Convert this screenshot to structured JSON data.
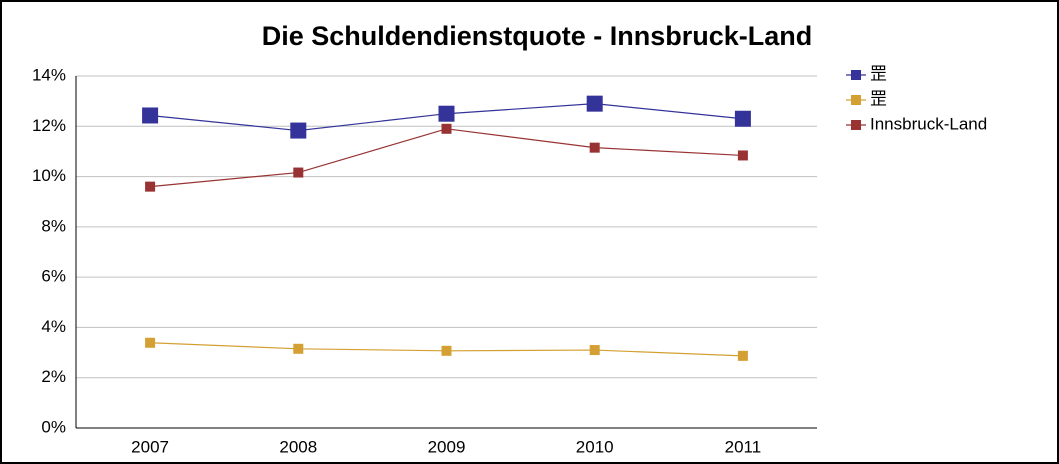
{
  "chart_data": {
    "type": "line",
    "title": "Die Schuldendienstquote - Innsbruck-Land",
    "categories": [
      "2007",
      "2008",
      "2009",
      "2010",
      "2011"
    ],
    "series": [
      {
        "name": "罡",
        "color": "#333399",
        "values": [
          12.43,
          11.83,
          12.5,
          12.9,
          12.3
        ]
      },
      {
        "name": "罡",
        "color": "#d4a033",
        "values": [
          3.39,
          3.15,
          3.07,
          3.1,
          2.87
        ]
      },
      {
        "name": "Innsbruck-Land",
        "color": "#993333",
        "values": [
          9.6,
          10.16,
          11.9,
          11.15,
          10.84
        ]
      }
    ],
    "ylim": [
      0,
      14
    ],
    "yticks": [
      {
        "value": 0,
        "label": "0%"
      },
      {
        "value": 2,
        "label": "2%"
      },
      {
        "value": 4,
        "label": "4%"
      },
      {
        "value": 6,
        "label": "6%"
      },
      {
        "value": 8,
        "label": "8%"
      },
      {
        "value": 10,
        "label": "10%"
      },
      {
        "value": 12,
        "label": "12%"
      },
      {
        "value": 14,
        "label": "14%"
      }
    ],
    "grid": true,
    "legend": "right"
  }
}
